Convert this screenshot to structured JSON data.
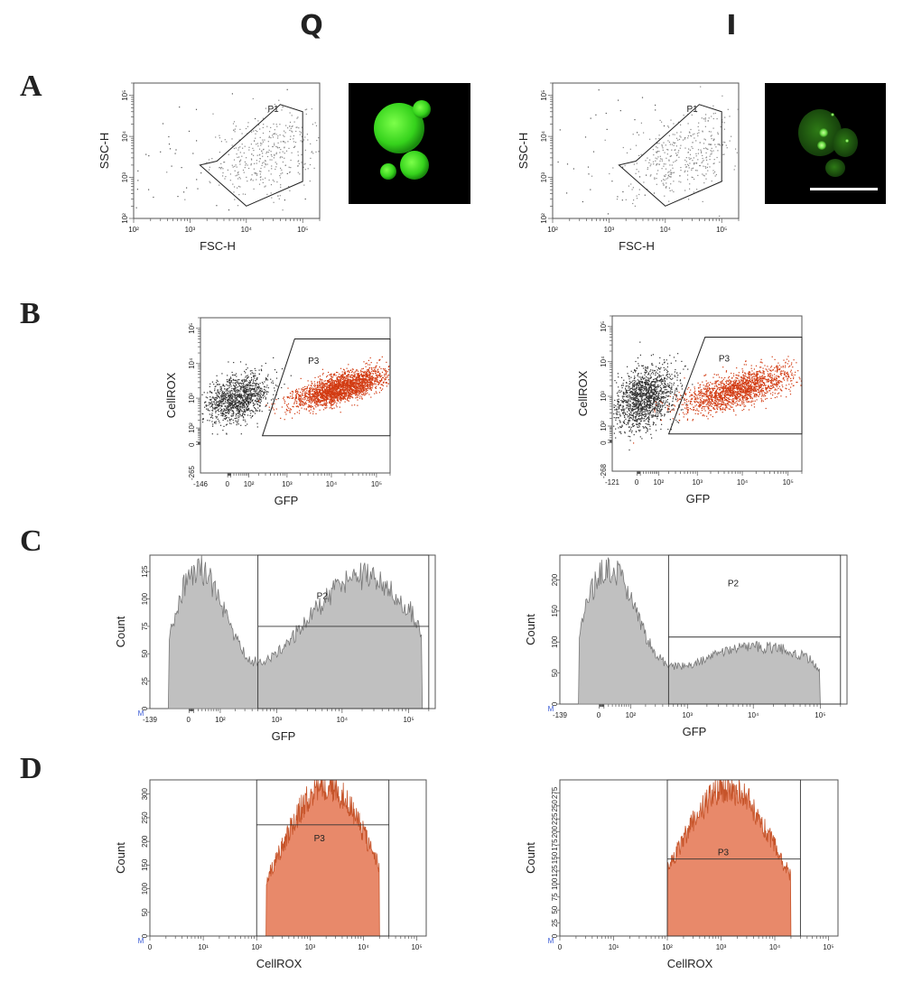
{
  "figure": {
    "columns": [
      "Q",
      "I"
    ],
    "rows": [
      "A",
      "B",
      "C",
      "D"
    ]
  },
  "chart_data": [
    {
      "id": "A-Q",
      "type": "scatter",
      "row": "A",
      "column": "Q",
      "xlabel": "FSC-H",
      "ylabel": "SSC-H",
      "x_scale": "log",
      "y_scale": "log",
      "xlim": [
        100,
        200000
      ],
      "ylim": [
        100,
        200000
      ],
      "x_ticks": [
        {
          "value": 100,
          "label": "10²"
        },
        {
          "value": 1000,
          "label": "10³"
        },
        {
          "value": 10000,
          "label": "10⁴"
        },
        {
          "value": 100000,
          "label": "10⁵"
        }
      ],
      "y_ticks": [
        {
          "value": 100,
          "label": "10²"
        },
        {
          "value": 1000,
          "label": "10³"
        },
        {
          "value": 10000,
          "label": "10⁴"
        },
        {
          "value": 100000,
          "label": "10⁵"
        }
      ],
      "gates": [
        {
          "name": "P1",
          "vertices": [
            [
              1500,
              2000
            ],
            [
              10000,
              200
            ],
            [
              100000,
              800
            ],
            [
              100000,
              40000
            ],
            [
              40000,
              60000
            ],
            [
              3000,
              2500
            ]
          ],
          "label_at": [
            30000,
            40000
          ]
        }
      ],
      "populations": [
        {
          "name": "debris",
          "color": "#555555",
          "cx": 700,
          "cy": 2000,
          "sx": 0.3,
          "sy": 0.25,
          "n": 60
        },
        {
          "name": "P1",
          "color": "#888888",
          "cx": 25000,
          "cy": 4000,
          "sx": 0.13,
          "sy": 0.12,
          "n": 400
        }
      ],
      "image": {
        "type": "fluorescence-micrograph",
        "description": "cells with diffuse green fluorescence"
      }
    },
    {
      "id": "A-I",
      "type": "scatter",
      "row": "A",
      "column": "I",
      "xlabel": "FSC-H",
      "ylabel": "SSC-H",
      "x_scale": "log",
      "y_scale": "log",
      "xlim": [
        100,
        200000
      ],
      "ylim": [
        100,
        200000
      ],
      "x_ticks": [
        {
          "value": 100,
          "label": "10²"
        },
        {
          "value": 1000,
          "label": "10³"
        },
        {
          "value": 10000,
          "label": "10⁴"
        },
        {
          "value": 100000,
          "label": "10⁵"
        }
      ],
      "y_ticks": [
        {
          "value": 100,
          "label": "10²"
        },
        {
          "value": 1000,
          "label": "10³"
        },
        {
          "value": 10000,
          "label": "10⁴"
        },
        {
          "value": 100000,
          "label": "10⁵"
        }
      ],
      "gates": [
        {
          "name": "P1",
          "vertices": [
            [
              1500,
              2000
            ],
            [
              10000,
              200
            ],
            [
              100000,
              800
            ],
            [
              100000,
              40000
            ],
            [
              40000,
              60000
            ],
            [
              3000,
              2500
            ]
          ],
          "label_at": [
            30000,
            40000
          ]
        }
      ],
      "populations": [
        {
          "name": "debris",
          "color": "#555555",
          "cx": 500,
          "cy": 2000,
          "sx": 0.3,
          "sy": 0.25,
          "n": 70
        },
        {
          "name": "P1",
          "color": "#888888",
          "cx": 20000,
          "cy": 3500,
          "sx": 0.13,
          "sy": 0.12,
          "n": 400
        }
      ],
      "image": {
        "type": "fluorescence-micrograph",
        "description": "cells with green fluorescent puncta, scale bar"
      }
    },
    {
      "id": "B-Q",
      "type": "scatter",
      "row": "B",
      "column": "Q",
      "xlabel": "GFP",
      "ylabel": "CellROX",
      "x_scale": "biexponential",
      "y_scale": "biexponential",
      "xlim": [
        -146,
        200000
      ],
      "ylim": [
        -265,
        200000
      ],
      "x_ticks": [
        {
          "value": -146,
          "label": "-146"
        },
        {
          "value": 0,
          "label": "0"
        },
        {
          "value": 100,
          "label": "10²"
        },
        {
          "value": 1000,
          "label": "10³"
        },
        {
          "value": 10000,
          "label": "10⁴"
        },
        {
          "value": 100000,
          "label": "10⁵"
        }
      ],
      "y_ticks": [
        {
          "value": -265,
          "label": "-265"
        },
        {
          "value": 0,
          "label": "0"
        },
        {
          "value": 100,
          "label": "10²"
        },
        {
          "value": 1000,
          "label": "10³"
        },
        {
          "value": 10000,
          "label": "10⁴"
        },
        {
          "value": 100000,
          "label": "10⁵"
        }
      ],
      "gates": [
        {
          "name": "P3",
          "vertices": [
            [
              250,
              40
            ],
            [
              1500,
              50000
            ],
            [
              200000,
              50000
            ],
            [
              200000,
              40
            ]
          ],
          "label_at": [
            4000,
            10000
          ]
        }
      ],
      "populations": [
        {
          "name": "GFP-negative",
          "color": "#333333",
          "cx": 30,
          "cy": 1000,
          "sx": 0.09,
          "sy": 0.08,
          "n": 1200
        },
        {
          "name": "P3",
          "color": "#d23b12",
          "cx": 15000,
          "cy": 2000,
          "sx": 0.13,
          "sy": 0.05,
          "n": 2400
        }
      ]
    },
    {
      "id": "B-I",
      "type": "scatter",
      "row": "B",
      "column": "I",
      "xlabel": "GFP",
      "ylabel": "CellROX",
      "x_scale": "biexponential",
      "y_scale": "biexponential",
      "xlim": [
        -121,
        200000
      ],
      "ylim": [
        -268,
        200000
      ],
      "x_ticks": [
        {
          "value": -121,
          "label": "-121"
        },
        {
          "value": 0,
          "label": "0"
        },
        {
          "value": 100,
          "label": "10²"
        },
        {
          "value": 1000,
          "label": "10³"
        },
        {
          "value": 10000,
          "label": "10⁴"
        },
        {
          "value": 100000,
          "label": "10⁵"
        }
      ],
      "y_ticks": [
        {
          "value": -268,
          "label": "-268"
        },
        {
          "value": 0,
          "label": "0"
        },
        {
          "value": 100,
          "label": "10²"
        },
        {
          "value": 1000,
          "label": "10³"
        },
        {
          "value": 10000,
          "label": "10⁴"
        },
        {
          "value": 100000,
          "label": "10⁵"
        }
      ],
      "gates": [
        {
          "name": "P3",
          "vertices": [
            [
              200,
              40
            ],
            [
              1500,
              50000
            ],
            [
              200000,
              50000
            ],
            [
              200000,
              40
            ]
          ],
          "label_at": [
            4000,
            10000
          ]
        }
      ],
      "populations": [
        {
          "name": "GFP-negative",
          "color": "#333333",
          "cx": 20,
          "cy": 900,
          "sx": 0.09,
          "sy": 0.11,
          "n": 1500
        },
        {
          "name": "P3",
          "color": "#d23b12",
          "cx": 8000,
          "cy": 1600,
          "sx": 0.15,
          "sy": 0.06,
          "n": 1800
        }
      ]
    },
    {
      "id": "C-Q",
      "type": "histogram",
      "row": "C",
      "column": "Q",
      "xlabel": "GFP",
      "ylabel": "Count",
      "x_scale": "biexponential",
      "xlim": [
        -139,
        250000
      ],
      "ylim": [
        0,
        140
      ],
      "fill": "#c0c0c0",
      "stroke": "#777777",
      "x_ticks": [
        {
          "value": -139,
          "label": "-139"
        },
        {
          "value": 0,
          "label": "0"
        },
        {
          "value": 100,
          "label": "10²"
        },
        {
          "value": 1000,
          "label": "10³"
        },
        {
          "value": 10000,
          "label": "10⁴"
        },
        {
          "value": 100000,
          "label": "10⁵"
        }
      ],
      "y_ticks": [
        0,
        25,
        50,
        75,
        100,
        125
      ],
      "peaks": [
        {
          "center": 20,
          "height": 115,
          "width": 0.1
        },
        {
          "center": 20000,
          "height": 110,
          "width": 0.22
        }
      ],
      "baseline": 10,
      "range": [
        -50,
        160000
      ],
      "gates": [
        {
          "name": "P2",
          "x_range": [
            500,
            200000
          ],
          "level": 75,
          "label_at": [
            5000,
            100
          ]
        }
      ],
      "marker": "M"
    },
    {
      "id": "C-I",
      "type": "histogram",
      "row": "C",
      "column": "I",
      "xlabel": "GFP",
      "ylabel": "Count",
      "x_scale": "biexponential",
      "xlim": [
        -139,
        250000
      ],
      "ylim": [
        0,
        240
      ],
      "fill": "#c0c0c0",
      "stroke": "#777777",
      "x_ticks": [
        {
          "value": -139,
          "label": "-139"
        },
        {
          "value": 0,
          "label": "0"
        },
        {
          "value": 100,
          "label": "10²"
        },
        {
          "value": 1000,
          "label": "10³"
        },
        {
          "value": 10000,
          "label": "10⁴"
        },
        {
          "value": 100000,
          "label": "10⁵"
        }
      ],
      "y_ticks": [
        0,
        50,
        100,
        150,
        200
      ],
      "peaks": [
        {
          "center": 20,
          "height": 200,
          "width": 0.1
        },
        {
          "center": 12000,
          "height": 80,
          "width": 0.26
        }
      ],
      "baseline": 12,
      "range": [
        -50,
        100000
      ],
      "gates": [
        {
          "name": "P2",
          "x_range": [
            500,
            200000
          ],
          "level": 108,
          "label_at": [
            5000,
            190
          ]
        }
      ],
      "marker": "M"
    },
    {
      "id": "D-Q",
      "type": "histogram",
      "row": "D",
      "column": "Q",
      "xlabel": "CellROX",
      "ylabel": "Count",
      "x_scale": "log",
      "xlim": [
        1,
        150000
      ],
      "ylim": [
        0,
        330
      ],
      "fill": "#e8896a",
      "stroke": "#c6542a",
      "x_ticks": [
        {
          "value": 1,
          "label": "0"
        },
        {
          "value": 10,
          "label": "10¹"
        },
        {
          "value": 100,
          "label": "10²"
        },
        {
          "value": 1000,
          "label": "10³"
        },
        {
          "value": 10000,
          "label": "10⁴"
        },
        {
          "value": 100000,
          "label": "10⁵"
        }
      ],
      "y_ticks": [
        0,
        50,
        100,
        150,
        200,
        250,
        300
      ],
      "peaks": [
        {
          "center": 2000,
          "height": 320,
          "width": 0.2
        }
      ],
      "baseline": 0,
      "range": [
        150,
        20000
      ],
      "gates": [
        {
          "name": "P3",
          "x_range": [
            100,
            30000
          ],
          "level": 235,
          "label_at": [
            1500,
            200
          ]
        }
      ],
      "marker": "M"
    },
    {
      "id": "D-I",
      "type": "histogram",
      "row": "D",
      "column": "I",
      "xlabel": "CellROX",
      "ylabel": "Count",
      "x_scale": "log",
      "xlim": [
        1,
        150000
      ],
      "ylim": [
        0,
        300
      ],
      "fill": "#e8896a",
      "stroke": "#c6542a",
      "x_ticks": [
        {
          "value": 1,
          "label": "0"
        },
        {
          "value": 10,
          "label": "10¹"
        },
        {
          "value": 100,
          "label": "10²"
        },
        {
          "value": 1000,
          "label": "10³"
        },
        {
          "value": 10000,
          "label": "10⁴"
        },
        {
          "value": 100000,
          "label": "10⁵"
        }
      ],
      "y_ticks": [
        0,
        25,
        50,
        75,
        100,
        125,
        150,
        175,
        200,
        225,
        250,
        275
      ],
      "peaks": [
        {
          "center": 1300,
          "height": 285,
          "width": 0.22
        }
      ],
      "baseline": 0,
      "range": [
        100,
        20000
      ],
      "gates": [
        {
          "name": "P3",
          "x_range": [
            100,
            30000
          ],
          "level": 148,
          "label_at": [
            1100,
            155
          ]
        }
      ],
      "marker": "M"
    }
  ]
}
